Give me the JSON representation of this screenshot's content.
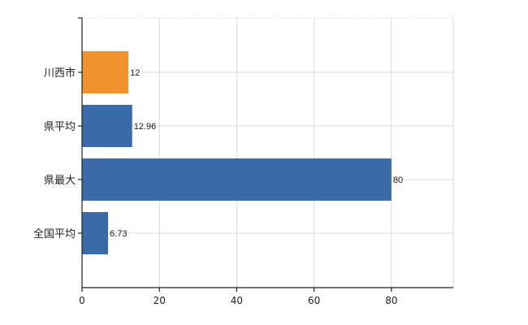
{
  "chart_data": {
    "type": "bar",
    "orientation": "horizontal",
    "categories": [
      "川西市",
      "県平均",
      "県最大",
      "全国平均"
    ],
    "values": [
      12,
      12.96,
      80,
      6.73
    ],
    "data_labels": [
      "12",
      "12.96",
      "80",
      "6.73"
    ],
    "bar_colors": [
      "#f0932f",
      "#3a6aa8",
      "#3a6aa8",
      "#3a6aa8"
    ],
    "xlim": [
      0,
      96
    ],
    "x_ticks": [
      0,
      20,
      40,
      60,
      80
    ],
    "x_tick_labels": [
      "0",
      "20",
      "40",
      "60",
      "80"
    ],
    "grid": true,
    "title": "",
    "xlabel": "",
    "ylabel": ""
  }
}
